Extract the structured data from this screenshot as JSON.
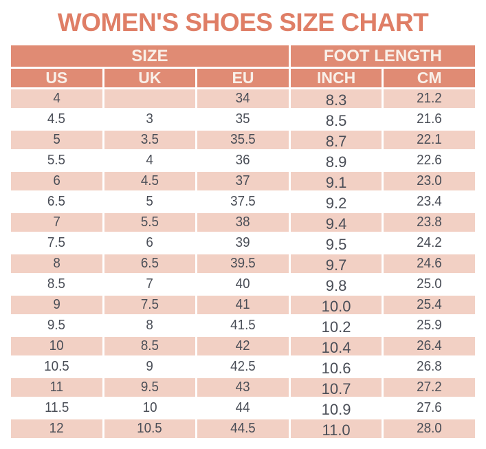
{
  "title": "WOMEN'S SHOES SIZE CHART",
  "colors": {
    "page_bg": "#FFFFFF",
    "title": "#DF7E66",
    "header_bg": "#E08B74",
    "header_text": "#F9F0E9",
    "row_alt_bg": "#F2D0C4",
    "row_bg": "#FFFFFF",
    "cell_text": "#4A4E57",
    "border": "#FFFFFF"
  },
  "chart_data": {
    "type": "table",
    "title": "WOMEN'S SHOES SIZE CHART",
    "column_groups": [
      {
        "label": "SIZE",
        "span": 3
      },
      {
        "label": "FOOT LENGTH",
        "span": 2
      }
    ],
    "columns": [
      "US",
      "UK",
      "EU",
      "INCH",
      "CM"
    ],
    "rows": [
      [
        "4",
        "",
        "34",
        "8.3",
        "21.2"
      ],
      [
        "4.5",
        "3",
        "35",
        "8.5",
        "21.6"
      ],
      [
        "5",
        "3.5",
        "35.5",
        "8.7",
        "22.1"
      ],
      [
        "5.5",
        "4",
        "36",
        "8.9",
        "22.6"
      ],
      [
        "6",
        "4.5",
        "37",
        "9.1",
        "23.0"
      ],
      [
        "6.5",
        "5",
        "37.5",
        "9.2",
        "23.4"
      ],
      [
        "7",
        "5.5",
        "38",
        "9.4",
        "23.8"
      ],
      [
        "7.5",
        "6",
        "39",
        "9.5",
        "24.2"
      ],
      [
        "8",
        "6.5",
        "39.5",
        "9.7",
        "24.6"
      ],
      [
        "8.5",
        "7",
        "40",
        "9.8",
        "25.0"
      ],
      [
        "9",
        "7.5",
        "41",
        "10.0",
        "25.4"
      ],
      [
        "9.5",
        "8",
        "41.5",
        "10.2",
        "25.9"
      ],
      [
        "10",
        "8.5",
        "42",
        "10.4",
        "26.4"
      ],
      [
        "10.5",
        "9",
        "42.5",
        "10.6",
        "26.8"
      ],
      [
        "11",
        "9.5",
        "43",
        "10.7",
        "27.2"
      ],
      [
        "11.5",
        "10",
        "44",
        "10.9",
        "27.6"
      ],
      [
        "12",
        "10.5",
        "44.5",
        "11.0",
        "28.0"
      ]
    ]
  }
}
